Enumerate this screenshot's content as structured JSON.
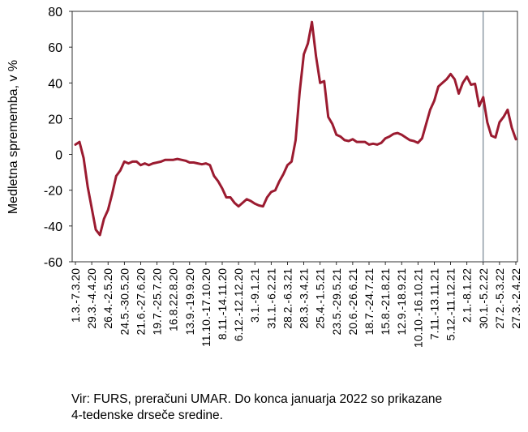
{
  "chart_data": {
    "type": "line",
    "ylabel": "Medletna sprememba, v %",
    "xlabel": "",
    "ylim": [
      -60,
      80
    ],
    "yticks": [
      -60,
      -40,
      -20,
      0,
      20,
      40,
      60,
      80
    ],
    "grid": false,
    "legend": "none",
    "line_color": "#9B1B30",
    "marker_line_color": "#5A6B7C",
    "tick_labels": [
      "1.3.-7.3.20",
      "29.3.-4.4.20",
      "26.4.-2.5.20",
      "24.5.-30.5.20",
      "21.6.-27.6.20",
      "19.7.-25.7.20",
      "16.8.22.8.20",
      "13.9.-19.9.20",
      "11.10.-17.10.20",
      "8.11.-14.11.20",
      "6.12.-12.12.20",
      "3.1.-9.1.21",
      "31.1.-6.2.21",
      "28.2.-6.3.21",
      "28.3.-3.4.21",
      "25.4.-1.5.21",
      "23.5.-29.5.21",
      "20.6.-26.6.21",
      "18.7.-24.7.21",
      "15.8.-21.8.21",
      "12.9.-18.9.21",
      "10.10.-16.10.21",
      "7.11.-13.11.21",
      "5.12.-11.12.21",
      "2.1.-8.1.22",
      "30.1.-5.2.22",
      "27.2.-5.3.22",
      "27.3.-2.4.22"
    ],
    "series": [
      {
        "values": [
          5.5,
          7,
          -2,
          -18,
          -30,
          -42,
          -45,
          -36,
          -31,
          -22,
          -12,
          -9,
          -4,
          -5,
          -4,
          -4,
          -6,
          -5,
          -6,
          -5,
          -4.5,
          -4,
          -3,
          -3,
          -3,
          -2.5,
          -3,
          -3.5,
          -4.5,
          -4.5,
          -5,
          -5.5,
          -5,
          -6,
          -12,
          -15,
          -19,
          -24,
          -24,
          -27,
          -29,
          -27,
          -25,
          -26,
          -27.5,
          -28.5,
          -29,
          -24,
          -21,
          -20,
          -15,
          -11,
          -6,
          -4,
          8,
          35,
          56,
          62,
          74,
          55,
          40,
          41,
          21,
          17,
          11,
          10,
          8,
          7.5,
          8.5,
          7,
          7,
          7,
          5.5,
          6,
          5.5,
          6.5,
          9,
          10,
          11.5,
          12,
          11,
          9.5,
          8,
          7.5,
          6.5,
          9,
          17,
          25,
          30,
          38,
          40,
          42,
          45,
          42,
          34,
          40,
          43.5,
          39,
          39.5,
          27,
          32,
          18,
          10.5,
          9.5,
          18,
          21,
          25,
          15,
          8.5
        ]
      }
    ]
  },
  "source_note": {
    "line1": "Vir: FURS, preračuni UMAR. Do konca januarja 2022 so prikazane",
    "line2": "4-tedenske drseče sredine."
  }
}
